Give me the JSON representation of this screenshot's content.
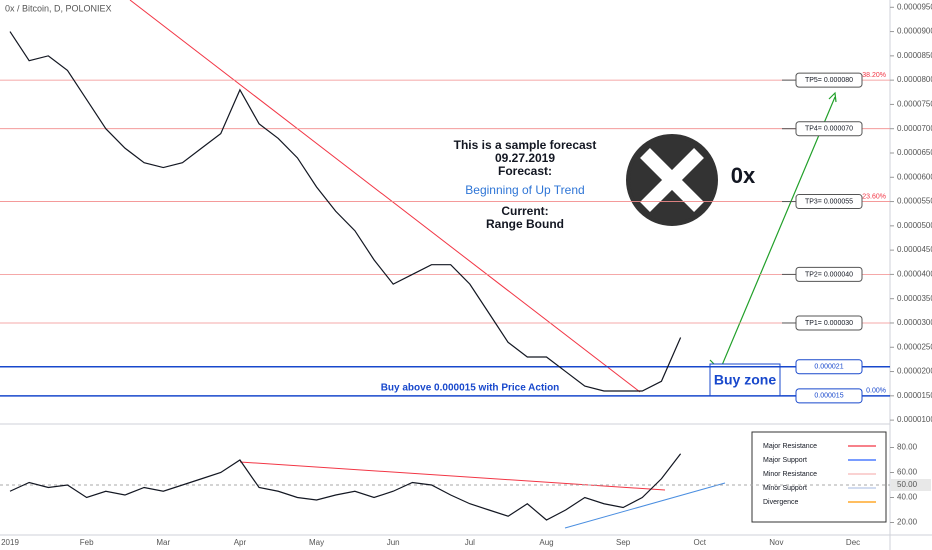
{
  "header": {
    "title": "0x / Bitcoin, D, POLONIEX"
  },
  "annotations": {
    "forecast": [
      "This is a sample forecast",
      "09.27.2019",
      "Forecast:"
    ],
    "trend": "Beginning of Up Trend",
    "current": [
      "Current:",
      "Range Bound"
    ],
    "symbol": "0x",
    "buy_zone": "Buy zone",
    "buy_note": "Buy above 0.000015 with Price Action"
  },
  "chart_data": [
    {
      "type": "line",
      "color": "#131722",
      "categories": [
        "2019",
        null,
        null,
        null,
        "Feb",
        null,
        null,
        null,
        "Mar",
        null,
        null,
        null,
        "Apr",
        null,
        null,
        null,
        "May",
        null,
        null,
        null,
        "Jun",
        null,
        null,
        null,
        "Jul",
        null,
        null,
        null,
        "Aug",
        null,
        null,
        null,
        "Sep",
        null,
        null,
        null,
        "Oct",
        null,
        null,
        null,
        "Nov",
        null,
        null,
        null,
        "Dec",
        null,
        null,
        null
      ],
      "values": [
        9e-05,
        8.4e-05,
        8.5e-05,
        8.2e-05,
        7.6e-05,
        7e-05,
        6.6e-05,
        6.3e-05,
        6.2e-05,
        6.3e-05,
        6.6e-05,
        6.9e-05,
        7.8e-05,
        7.1e-05,
        6.8e-05,
        6.4e-05,
        5.8e-05,
        5.3e-05,
        4.9e-05,
        4.3e-05,
        3.8e-05,
        4e-05,
        4.2e-05,
        4.2e-05,
        3.8e-05,
        3.2e-05,
        2.6e-05,
        2.3e-05,
        2.3e-05,
        2e-05,
        1.7e-05,
        1.6e-05,
        1.6e-05,
        1.6e-05,
        1.8e-05,
        2.7e-05,
        null,
        null,
        null,
        null,
        null,
        null,
        null,
        null,
        null,
        null,
        null,
        null
      ],
      "ylim": [
        9.2e-06,
        9.65e-05
      ],
      "yticks": [
        {
          "value": 9.5e-05,
          "label": "0.00009500"
        },
        {
          "value": 9e-05,
          "label": "0.00009000"
        },
        {
          "value": 8.5e-05,
          "label": "0.00008500"
        },
        {
          "value": 8e-05,
          "label": "0.00008000"
        },
        {
          "value": 7.5e-05,
          "label": "0.00007500"
        },
        {
          "value": 7e-05,
          "label": "0.00007000"
        },
        {
          "value": 6.5e-05,
          "label": "0.00006500"
        },
        {
          "value": 6e-05,
          "label": "0.00006000"
        },
        {
          "value": 5.5e-05,
          "label": "0.00005500"
        },
        {
          "value": 5e-05,
          "label": "0.00005000"
        },
        {
          "value": 4.5e-05,
          "label": "0.00004500"
        },
        {
          "value": 4e-05,
          "label": "0.00004000"
        },
        {
          "value": 3.5e-05,
          "label": "0.00003500"
        },
        {
          "value": 3e-05,
          "label": "0.00003000"
        },
        {
          "value": 2.5e-05,
          "label": "0.00002500"
        },
        {
          "value": 2e-05,
          "label": "0.00002000"
        },
        {
          "value": 1.5e-05,
          "label": "0.00001500"
        },
        {
          "value": 1e-05,
          "label": "0.00001000"
        }
      ],
      "levels": [
        {
          "value": 8e-05,
          "label": "TP5= 0.000080",
          "fib": "38.20%",
          "color": "#f28b8b"
        },
        {
          "value": 7e-05,
          "label": "TP4= 0.000070",
          "color": "#f28b8b"
        },
        {
          "value": 5.5e-05,
          "label": "TP3= 0.000055",
          "fib": "23.60%",
          "color": "#f28b8b"
        },
        {
          "value": 4e-05,
          "label": "TP2= 0.000040",
          "color": "#f28b8b"
        },
        {
          "value": 3e-05,
          "label": "TP1= 0.000030",
          "color": "#f28b8b"
        },
        {
          "value": 2.1e-05,
          "label": "0.000021",
          "color": "#1848cc"
        },
        {
          "value": 1.5e-05,
          "label": "0.000015",
          "fib": "0.00%",
          "color": "#1848cc"
        }
      ]
    },
    {
      "type": "line",
      "color": "#131722",
      "values": [
        45,
        52,
        48,
        50,
        40,
        45,
        42,
        48,
        45,
        50,
        55,
        60,
        70,
        48,
        45,
        40,
        38,
        42,
        45,
        40,
        45,
        52,
        50,
        42,
        35,
        30,
        25,
        35,
        22,
        30,
        40,
        35,
        32,
        40,
        55,
        75,
        null,
        null,
        null,
        null,
        null,
        null,
        null,
        null,
        null,
        null,
        null,
        null
      ],
      "ylim": [
        10,
        98
      ],
      "yticks": [
        {
          "value": 20,
          "label": "20.00"
        },
        {
          "value": 40,
          "label": "40.00"
        },
        {
          "value": 60,
          "label": "60.00"
        },
        {
          "value": 80,
          "label": "80.00"
        }
      ],
      "marker": {
        "value": 50,
        "label": "50.00"
      },
      "legend": [
        {
          "name": "Major Resistance",
          "color": "#f23645"
        },
        {
          "name": "Major Support",
          "color": "#2962ff"
        },
        {
          "name": "Minor Resistance",
          "color": "#f7b7b7"
        },
        {
          "name": "Minor Support",
          "color": "#b7c7e8"
        },
        {
          "name": "Divergence",
          "color": "#ff9800"
        }
      ]
    }
  ]
}
